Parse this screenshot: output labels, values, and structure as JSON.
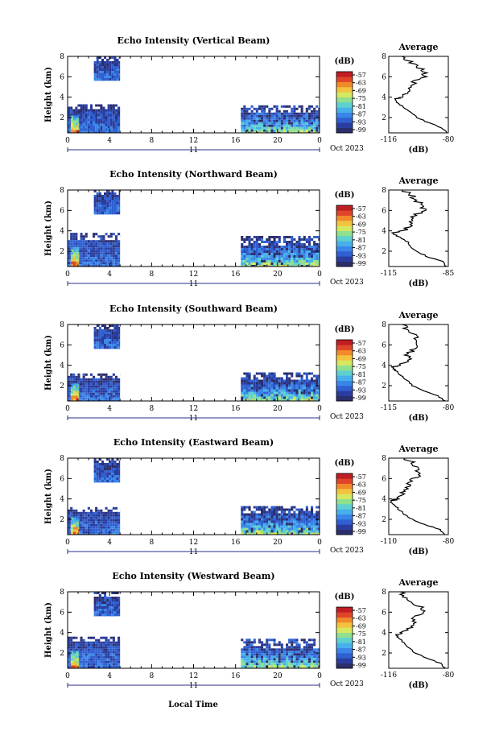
{
  "figure": {
    "date_label": "Oct 2023",
    "day_label": "11",
    "xlabel_bottom": "Local Time"
  },
  "chart_data": [
    {
      "type": "heatmap",
      "title": "Echo Intensity (Vertical Beam)",
      "ylabel": "Height (km)",
      "x_ticks": [
        "0",
        "4",
        "8",
        "12",
        "16",
        "20",
        "0"
      ],
      "xlim": [
        0,
        24
      ],
      "y_ticks": [
        "2",
        "4",
        "6",
        "8"
      ],
      "ylim": [
        0.5,
        8
      ],
      "colorbar": {
        "title": "(dB)",
        "ticks": [
          "-57",
          "-63",
          "-69",
          "-75",
          "-81",
          "-87",
          "-93",
          "-99"
        ]
      },
      "data_regions": [
        {
          "x": [
            0.0,
            5.0
          ],
          "y": [
            0.5,
            3.3
          ],
          "level": "low"
        },
        {
          "x": [
            2.5,
            5.0
          ],
          "y": [
            5.6,
            8.0
          ],
          "level": "low"
        },
        {
          "x": [
            16.5,
            24.0
          ],
          "y": [
            0.5,
            3.2
          ],
          "level": "mid"
        },
        {
          "x": [
            0.3,
            1.1
          ],
          "y": [
            0.5,
            2.2
          ],
          "level": "high"
        }
      ],
      "average": {
        "title": "Average",
        "xlabel": "(dB)",
        "x_ticks": [
          "-116",
          "-80"
        ],
        "xlim": [
          -116,
          -80
        ],
        "y_ticks": [
          "2",
          "4",
          "6",
          "8"
        ],
        "height": [
          0.5,
          1.0,
          1.5,
          2.0,
          2.5,
          3.0,
          3.5,
          3.8,
          4.0,
          4.5,
          5.0,
          5.5,
          6.0,
          6.5,
          7.0,
          7.5,
          8.0
        ],
        "value": [
          -81,
          -84,
          -92,
          -99,
          -103,
          -107,
          -111,
          -112,
          -108,
          -104,
          -102,
          -101,
          -95,
          -94,
          -99,
          -103,
          -108
        ]
      }
    },
    {
      "type": "heatmap",
      "title": "Echo Intensity (Northward Beam)",
      "ylabel": "Height (km)",
      "x_ticks": [
        "0",
        "4",
        "8",
        "12",
        "16",
        "20",
        "0"
      ],
      "xlim": [
        0,
        24
      ],
      "y_ticks": [
        "2",
        "4",
        "6",
        "8"
      ],
      "ylim": [
        0.5,
        8
      ],
      "colorbar": {
        "title": "(dB)",
        "ticks": [
          "-57",
          "-63",
          "-69",
          "-75",
          "-81",
          "-87",
          "-93",
          "-99"
        ]
      },
      "data_regions": [
        {
          "x": [
            0.0,
            5.0
          ],
          "y": [
            0.5,
            3.8
          ],
          "level": "low"
        },
        {
          "x": [
            2.5,
            5.0
          ],
          "y": [
            5.6,
            8.0
          ],
          "level": "low"
        },
        {
          "x": [
            16.5,
            24.0
          ],
          "y": [
            0.5,
            3.5
          ],
          "level": "mid"
        },
        {
          "x": [
            0.3,
            1.1
          ],
          "y": [
            0.5,
            2.4
          ],
          "level": "high"
        }
      ],
      "average": {
        "title": "Average",
        "xlabel": "(dB)",
        "x_ticks": [
          "-115",
          "-85"
        ],
        "xlim": [
          -115,
          -85
        ],
        "y_ticks": [
          "2",
          "4",
          "6",
          "8"
        ],
        "height": [
          0.5,
          1.0,
          1.5,
          2.0,
          2.5,
          3.0,
          3.5,
          3.8,
          4.0,
          4.5,
          5.0,
          5.5,
          6.0,
          6.5,
          7.0,
          7.5,
          8.0
        ],
        "value": [
          -86,
          -88,
          -96,
          -101,
          -104,
          -106,
          -111,
          -113,
          -107,
          -104,
          -103,
          -102,
          -96,
          -98,
          -101,
          -104,
          -108
        ]
      }
    },
    {
      "type": "heatmap",
      "title": "Echo Intensity (Southward Beam)",
      "ylabel": "Height (km)",
      "x_ticks": [
        "0",
        "4",
        "8",
        "12",
        "16",
        "20",
        "0"
      ],
      "xlim": [
        0,
        24
      ],
      "y_ticks": [
        "2",
        "4",
        "6",
        "8"
      ],
      "ylim": [
        0.5,
        8
      ],
      "colorbar": {
        "title": "(dB)",
        "ticks": [
          "-57",
          "-63",
          "-69",
          "-75",
          "-81",
          "-87",
          "-93",
          "-99"
        ]
      },
      "data_regions": [
        {
          "x": [
            0.0,
            5.0
          ],
          "y": [
            0.5,
            3.2
          ],
          "level": "low"
        },
        {
          "x": [
            2.5,
            5.0
          ],
          "y": [
            5.6,
            8.0
          ],
          "level": "low"
        },
        {
          "x": [
            16.5,
            24.0
          ],
          "y": [
            0.5,
            3.3
          ],
          "level": "mid"
        },
        {
          "x": [
            0.3,
            1.1
          ],
          "y": [
            0.5,
            2.2
          ],
          "level": "high"
        }
      ],
      "average": {
        "title": "Average",
        "xlabel": "(dB)",
        "x_ticks": [
          "-115",
          "-80"
        ],
        "xlim": [
          -115,
          -80
        ],
        "y_ticks": [
          "2",
          "4",
          "6",
          "8"
        ],
        "height": [
          0.5,
          1.0,
          1.5,
          2.0,
          2.5,
          3.0,
          3.5,
          3.8,
          4.0,
          4.5,
          5.0,
          5.5,
          6.0,
          6.5,
          7.0,
          7.5,
          8.0
        ],
        "value": [
          -82,
          -86,
          -95,
          -101,
          -104,
          -108,
          -111,
          -113,
          -108,
          -103,
          -104,
          -101,
          -97,
          -100,
          -99,
          -104,
          -107
        ]
      }
    },
    {
      "type": "heatmap",
      "title": "Echo Intensity (Eastward Beam)",
      "ylabel": "Height (km)",
      "x_ticks": [
        "0",
        "4",
        "8",
        "12",
        "16",
        "20",
        "0"
      ],
      "xlim": [
        0,
        24
      ],
      "y_ticks": [
        "2",
        "4",
        "6",
        "8"
      ],
      "ylim": [
        0.5,
        8
      ],
      "colorbar": {
        "title": "(dB)",
        "ticks": [
          "-57",
          "-63",
          "-69",
          "-75",
          "-81",
          "-87",
          "-93",
          "-99"
        ]
      },
      "data_regions": [
        {
          "x": [
            0.0,
            5.0
          ],
          "y": [
            0.5,
            3.2
          ],
          "level": "low"
        },
        {
          "x": [
            2.5,
            5.0
          ],
          "y": [
            5.6,
            8.0
          ],
          "level": "low"
        },
        {
          "x": [
            16.5,
            24.0
          ],
          "y": [
            0.5,
            3.3
          ],
          "level": "mid"
        },
        {
          "x": [
            0.3,
            1.1
          ],
          "y": [
            0.5,
            2.2
          ],
          "level": "high"
        }
      ],
      "average": {
        "title": "Average",
        "xlabel": "(dB)",
        "x_ticks": [
          "-110",
          "-80"
        ],
        "xlim": [
          -110,
          -80
        ],
        "y_ticks": [
          "2",
          "4",
          "6",
          "8"
        ],
        "height": [
          0.5,
          1.0,
          1.5,
          2.0,
          2.5,
          3.0,
          3.5,
          3.8,
          4.0,
          4.5,
          5.0,
          5.5,
          6.0,
          6.5,
          7.0,
          7.5,
          8.0
        ],
        "value": [
          -82,
          -84,
          -92,
          -98,
          -102,
          -105,
          -108,
          -109,
          -106,
          -103,
          -102,
          -100,
          -97,
          -95,
          -96,
          -98,
          -102
        ]
      }
    },
    {
      "type": "heatmap",
      "title": "Echo Intensity (Westward Beam)",
      "ylabel": "Height (km)",
      "x_ticks": [
        "0",
        "4",
        "8",
        "12",
        "16",
        "20",
        "0"
      ],
      "xlim": [
        0,
        24
      ],
      "y_ticks": [
        "2",
        "4",
        "6",
        "8"
      ],
      "ylim": [
        0.5,
        8
      ],
      "colorbar": {
        "title": "(dB)",
        "ticks": [
          "-57",
          "-63",
          "-69",
          "-75",
          "-81",
          "-87",
          "-93",
          "-99"
        ]
      },
      "data_regions": [
        {
          "x": [
            0.0,
            5.0
          ],
          "y": [
            0.5,
            3.6
          ],
          "level": "low"
        },
        {
          "x": [
            2.5,
            5.0
          ],
          "y": [
            5.6,
            8.0
          ],
          "level": "low"
        },
        {
          "x": [
            16.5,
            24.0
          ],
          "y": [
            0.5,
            3.4
          ],
          "level": "mid"
        },
        {
          "x": [
            0.3,
            1.1
          ],
          "y": [
            0.5,
            2.2
          ],
          "level": "high"
        }
      ],
      "average": {
        "title": "Average",
        "xlabel": "(dB)",
        "x_ticks": [
          "-116",
          "-80"
        ],
        "xlim": [
          -116,
          -80
        ],
        "y_ticks": [
          "2",
          "4",
          "6",
          "8"
        ],
        "height": [
          0.5,
          1.0,
          1.5,
          2.0,
          2.5,
          3.0,
          3.5,
          3.8,
          4.0,
          4.5,
          5.0,
          5.5,
          6.0,
          6.5,
          7.0,
          7.5,
          8.0
        ],
        "value": [
          -82,
          -85,
          -93,
          -100,
          -104,
          -107,
          -110,
          -112,
          -108,
          -103,
          -101,
          -100,
          -95,
          -97,
          -102,
          -106,
          -109
        ]
      }
    }
  ],
  "colormap": [
    "#2b2e6b",
    "#2a3d9e",
    "#2f5fd0",
    "#3a86e8",
    "#46b0ea",
    "#5fd0d0",
    "#8fe08f",
    "#d6e860",
    "#f3c340",
    "#f08a2a",
    "#e0452a",
    "#c01e24"
  ]
}
